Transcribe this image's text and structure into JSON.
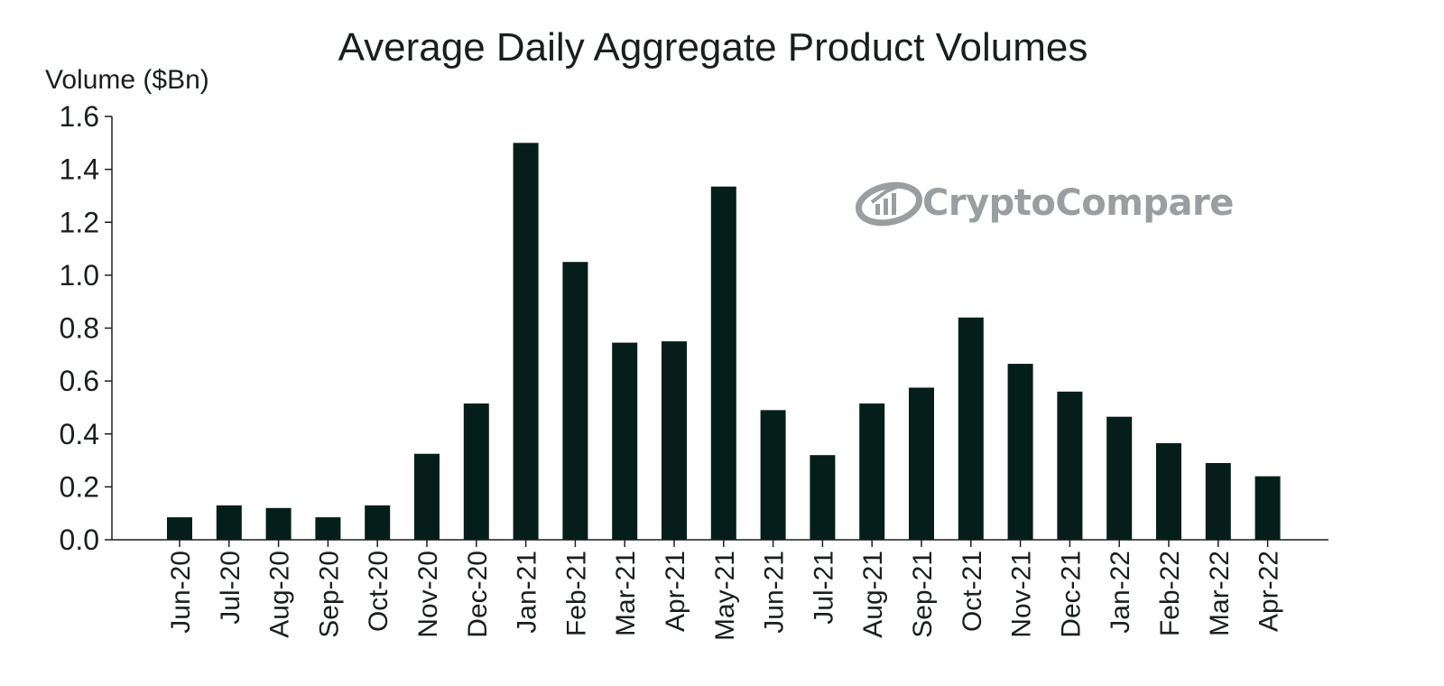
{
  "chart_data": {
    "type": "bar",
    "title": "Average Daily Aggregate Product Volumes",
    "xlabel": "",
    "ylabel": "Volume ($Bn)",
    "ylim": [
      0,
      1.6
    ],
    "yticks": [
      "0.0",
      "0.2",
      "0.4",
      "0.6",
      "0.8",
      "1.0",
      "1.2",
      "1.4",
      "1.6"
    ],
    "categories": [
      "Jun-20",
      "Jul-20",
      "Aug-20",
      "Sep-20",
      "Oct-20",
      "Nov-20",
      "Dec-20",
      "Jan-21",
      "Feb-21",
      "Mar-21",
      "Apr-21",
      "May-21",
      "Jun-21",
      "Jul-21",
      "Aug-21",
      "Sep-21",
      "Oct-21",
      "Nov-21",
      "Dec-21",
      "Jan-22",
      "Feb-22",
      "Mar-22",
      "Apr-22"
    ],
    "values": [
      0.085,
      0.13,
      0.12,
      0.085,
      0.13,
      0.325,
      0.515,
      1.5,
      1.05,
      0.745,
      0.75,
      1.335,
      0.49,
      0.32,
      0.515,
      0.575,
      0.84,
      0.665,
      0.56,
      0.465,
      0.365,
      0.29,
      0.24
    ],
    "grid": false,
    "colors": {
      "bar": "#051e1a",
      "axis": "#1a1f1d",
      "text": "#1a1f1d",
      "watermark": "#9a9ea1"
    }
  },
  "watermark": {
    "brand": "CryptoCompare",
    "icon": "cryptocompare-logo-icon"
  }
}
